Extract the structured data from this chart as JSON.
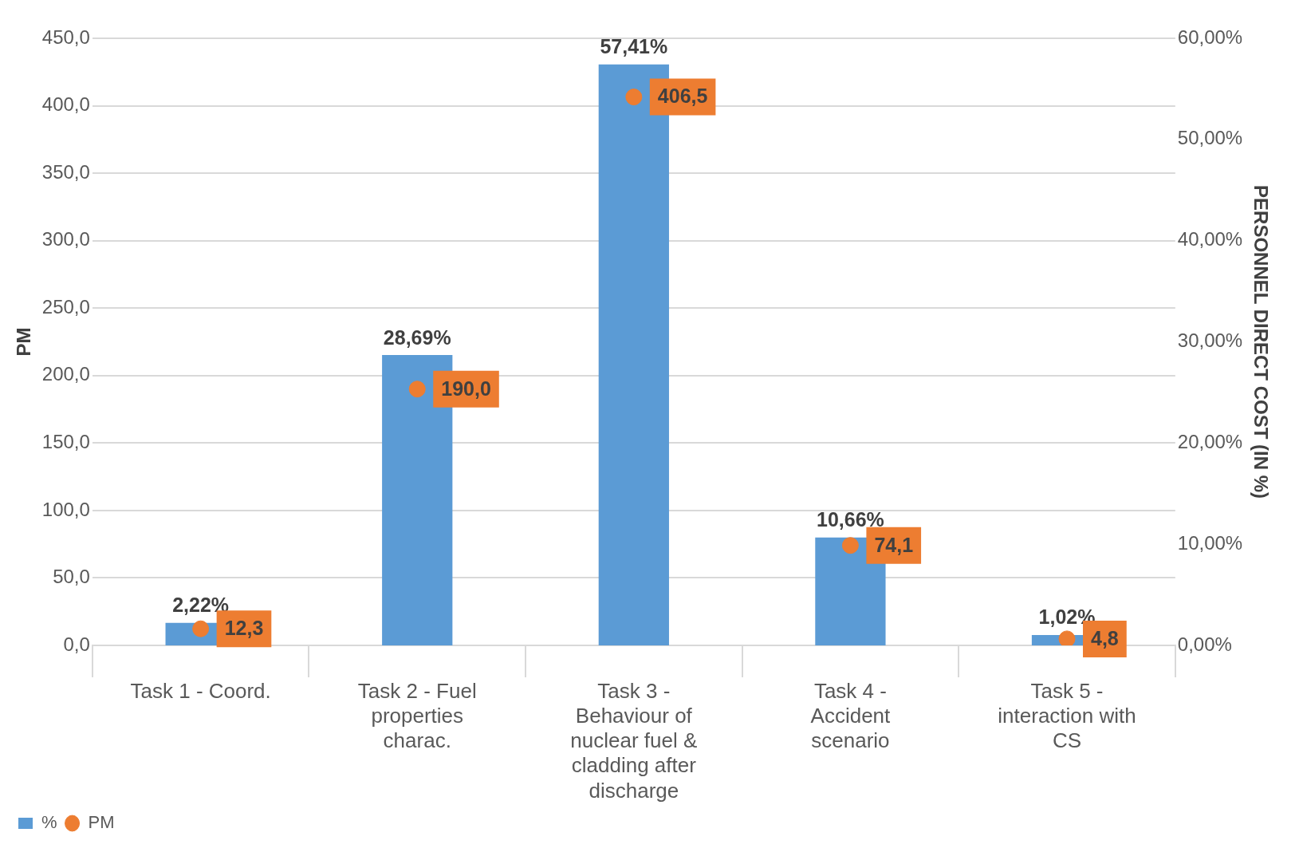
{
  "chart_data": {
    "type": "bar",
    "categories": [
      "Task 1 - Coord.",
      "Task 2 - Fuel properties charac.",
      "Task 3 - Behaviour of nuclear fuel & cladding after discharge",
      "Task 4 - Accident scenario",
      "Task 5 - interaction with CS"
    ],
    "series": [
      {
        "name": "%",
        "axis": "y2",
        "color": "#5b9bd5",
        "values": [
          2.22,
          28.69,
          57.41,
          10.66,
          1.02
        ],
        "value_labels": [
          "2,22%",
          "28,69%",
          "57,41%",
          "10,66%",
          "1,02%"
        ]
      },
      {
        "name": "PM",
        "type": "scatter",
        "axis": "y",
        "color": "#ed7d31",
        "values": [
          12.3,
          190.0,
          406.5,
          74.1,
          4.8
        ],
        "value_labels": [
          "12,3",
          "190,0",
          "406,5",
          "74,1",
          "4,8"
        ]
      }
    ],
    "ylabel": "PM",
    "y2label": "PERSONNEL DIRECT COST (IN %)",
    "ylim": [
      0,
      450
    ],
    "yticks": [
      {
        "value": 0,
        "label": "0,0"
      },
      {
        "value": 50,
        "label": "50,0"
      },
      {
        "value": 100,
        "label": "100,0"
      },
      {
        "value": 150,
        "label": "150,0"
      },
      {
        "value": 200,
        "label": "200,0"
      },
      {
        "value": 250,
        "label": "250,0"
      },
      {
        "value": 300,
        "label": "300,0"
      },
      {
        "value": 350,
        "label": "350,0"
      },
      {
        "value": 400,
        "label": "400,0"
      },
      {
        "value": 450,
        "label": "450,0"
      }
    ],
    "y2lim": [
      0,
      60
    ],
    "y2ticks": [
      {
        "value": 0,
        "label": "0,00%"
      },
      {
        "value": 10,
        "label": "10,00%"
      },
      {
        "value": 20,
        "label": "20,00%"
      },
      {
        "value": 30,
        "label": "30,00%"
      },
      {
        "value": 40,
        "label": "40,00%"
      },
      {
        "value": 50,
        "label": "50,00%"
      },
      {
        "value": 60,
        "label": "60,00%"
      }
    ],
    "grid": "y",
    "legend": "bottom left",
    "marker": "circle"
  }
}
